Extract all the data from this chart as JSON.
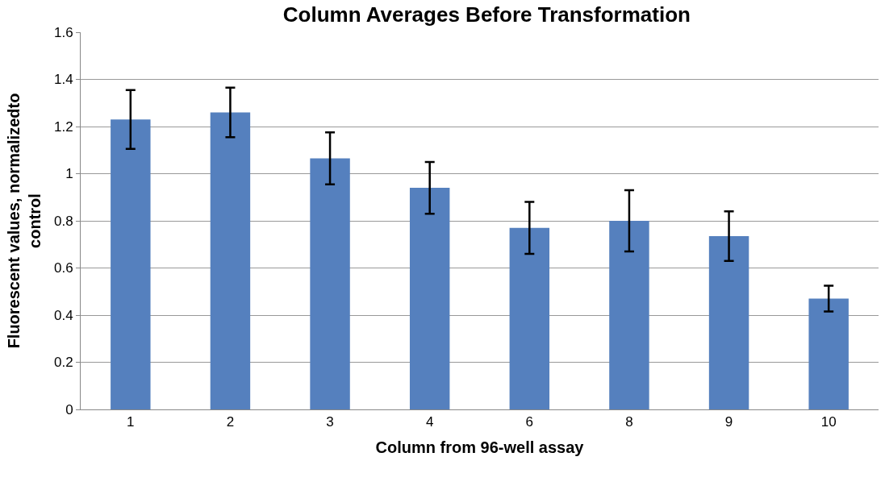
{
  "chart_data": {
    "type": "bar",
    "title": "Column Averages Before Transformation",
    "xlabel": "Column from 96-well assay",
    "ylabel": "Fluorescent values, normalizedto control",
    "categories": [
      "1",
      "2",
      "3",
      "4",
      "6",
      "8",
      "9",
      "10"
    ],
    "values": [
      1.23,
      1.26,
      1.065,
      0.94,
      0.77,
      0.8,
      0.735,
      0.47
    ],
    "errors": [
      0.125,
      0.105,
      0.11,
      0.11,
      0.11,
      0.13,
      0.105,
      0.055
    ],
    "color": "#5580be",
    "ylim": [
      0,
      1.6
    ],
    "yticks": [
      0,
      0.2,
      0.4,
      0.6,
      0.8,
      1,
      1.2,
      1.4,
      1.6
    ],
    "grid": "y"
  }
}
